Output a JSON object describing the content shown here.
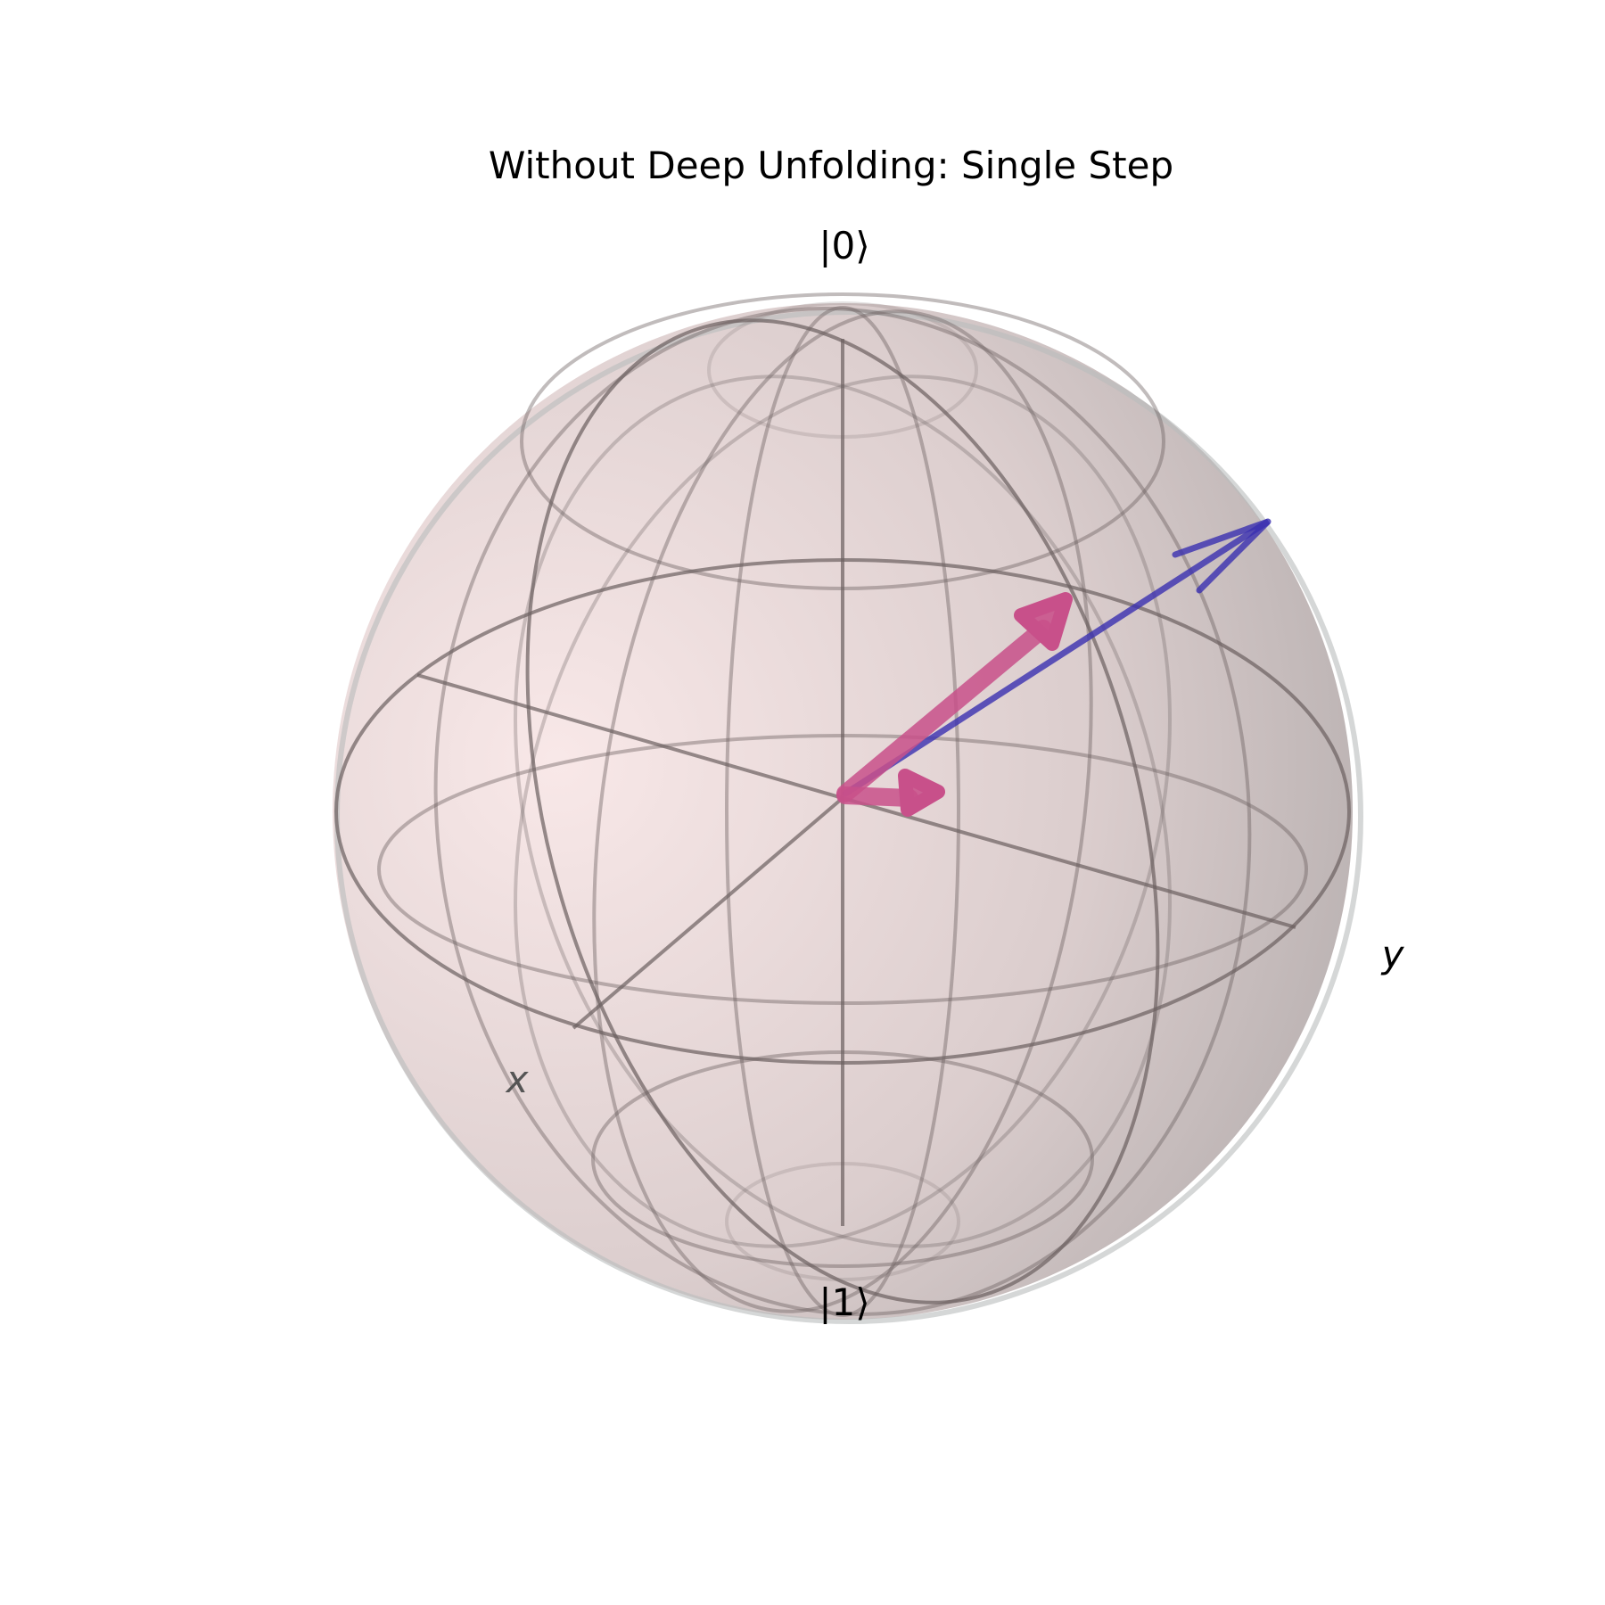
{
  "figure": {
    "title": "Without Deep Unfolding: Single Step",
    "labels": {
      "north_pole": "|0⟩",
      "south_pole": "|1⟩",
      "x_axis": "x",
      "y_axis": "y"
    }
  },
  "colors": {
    "sphere_light": "#f6e3e3",
    "sphere_dark": "#a09b9b",
    "wire": "#6b6060",
    "state_blue": "#3a2fb0",
    "state_pink": "#c8508a"
  },
  "vectors": [
    {
      "name": "blue-state-vector",
      "color_key": "state_blue"
    },
    {
      "name": "pink-state-vector-long",
      "color_key": "state_pink"
    },
    {
      "name": "pink-state-vector-short",
      "color_key": "state_pink"
    }
  ]
}
